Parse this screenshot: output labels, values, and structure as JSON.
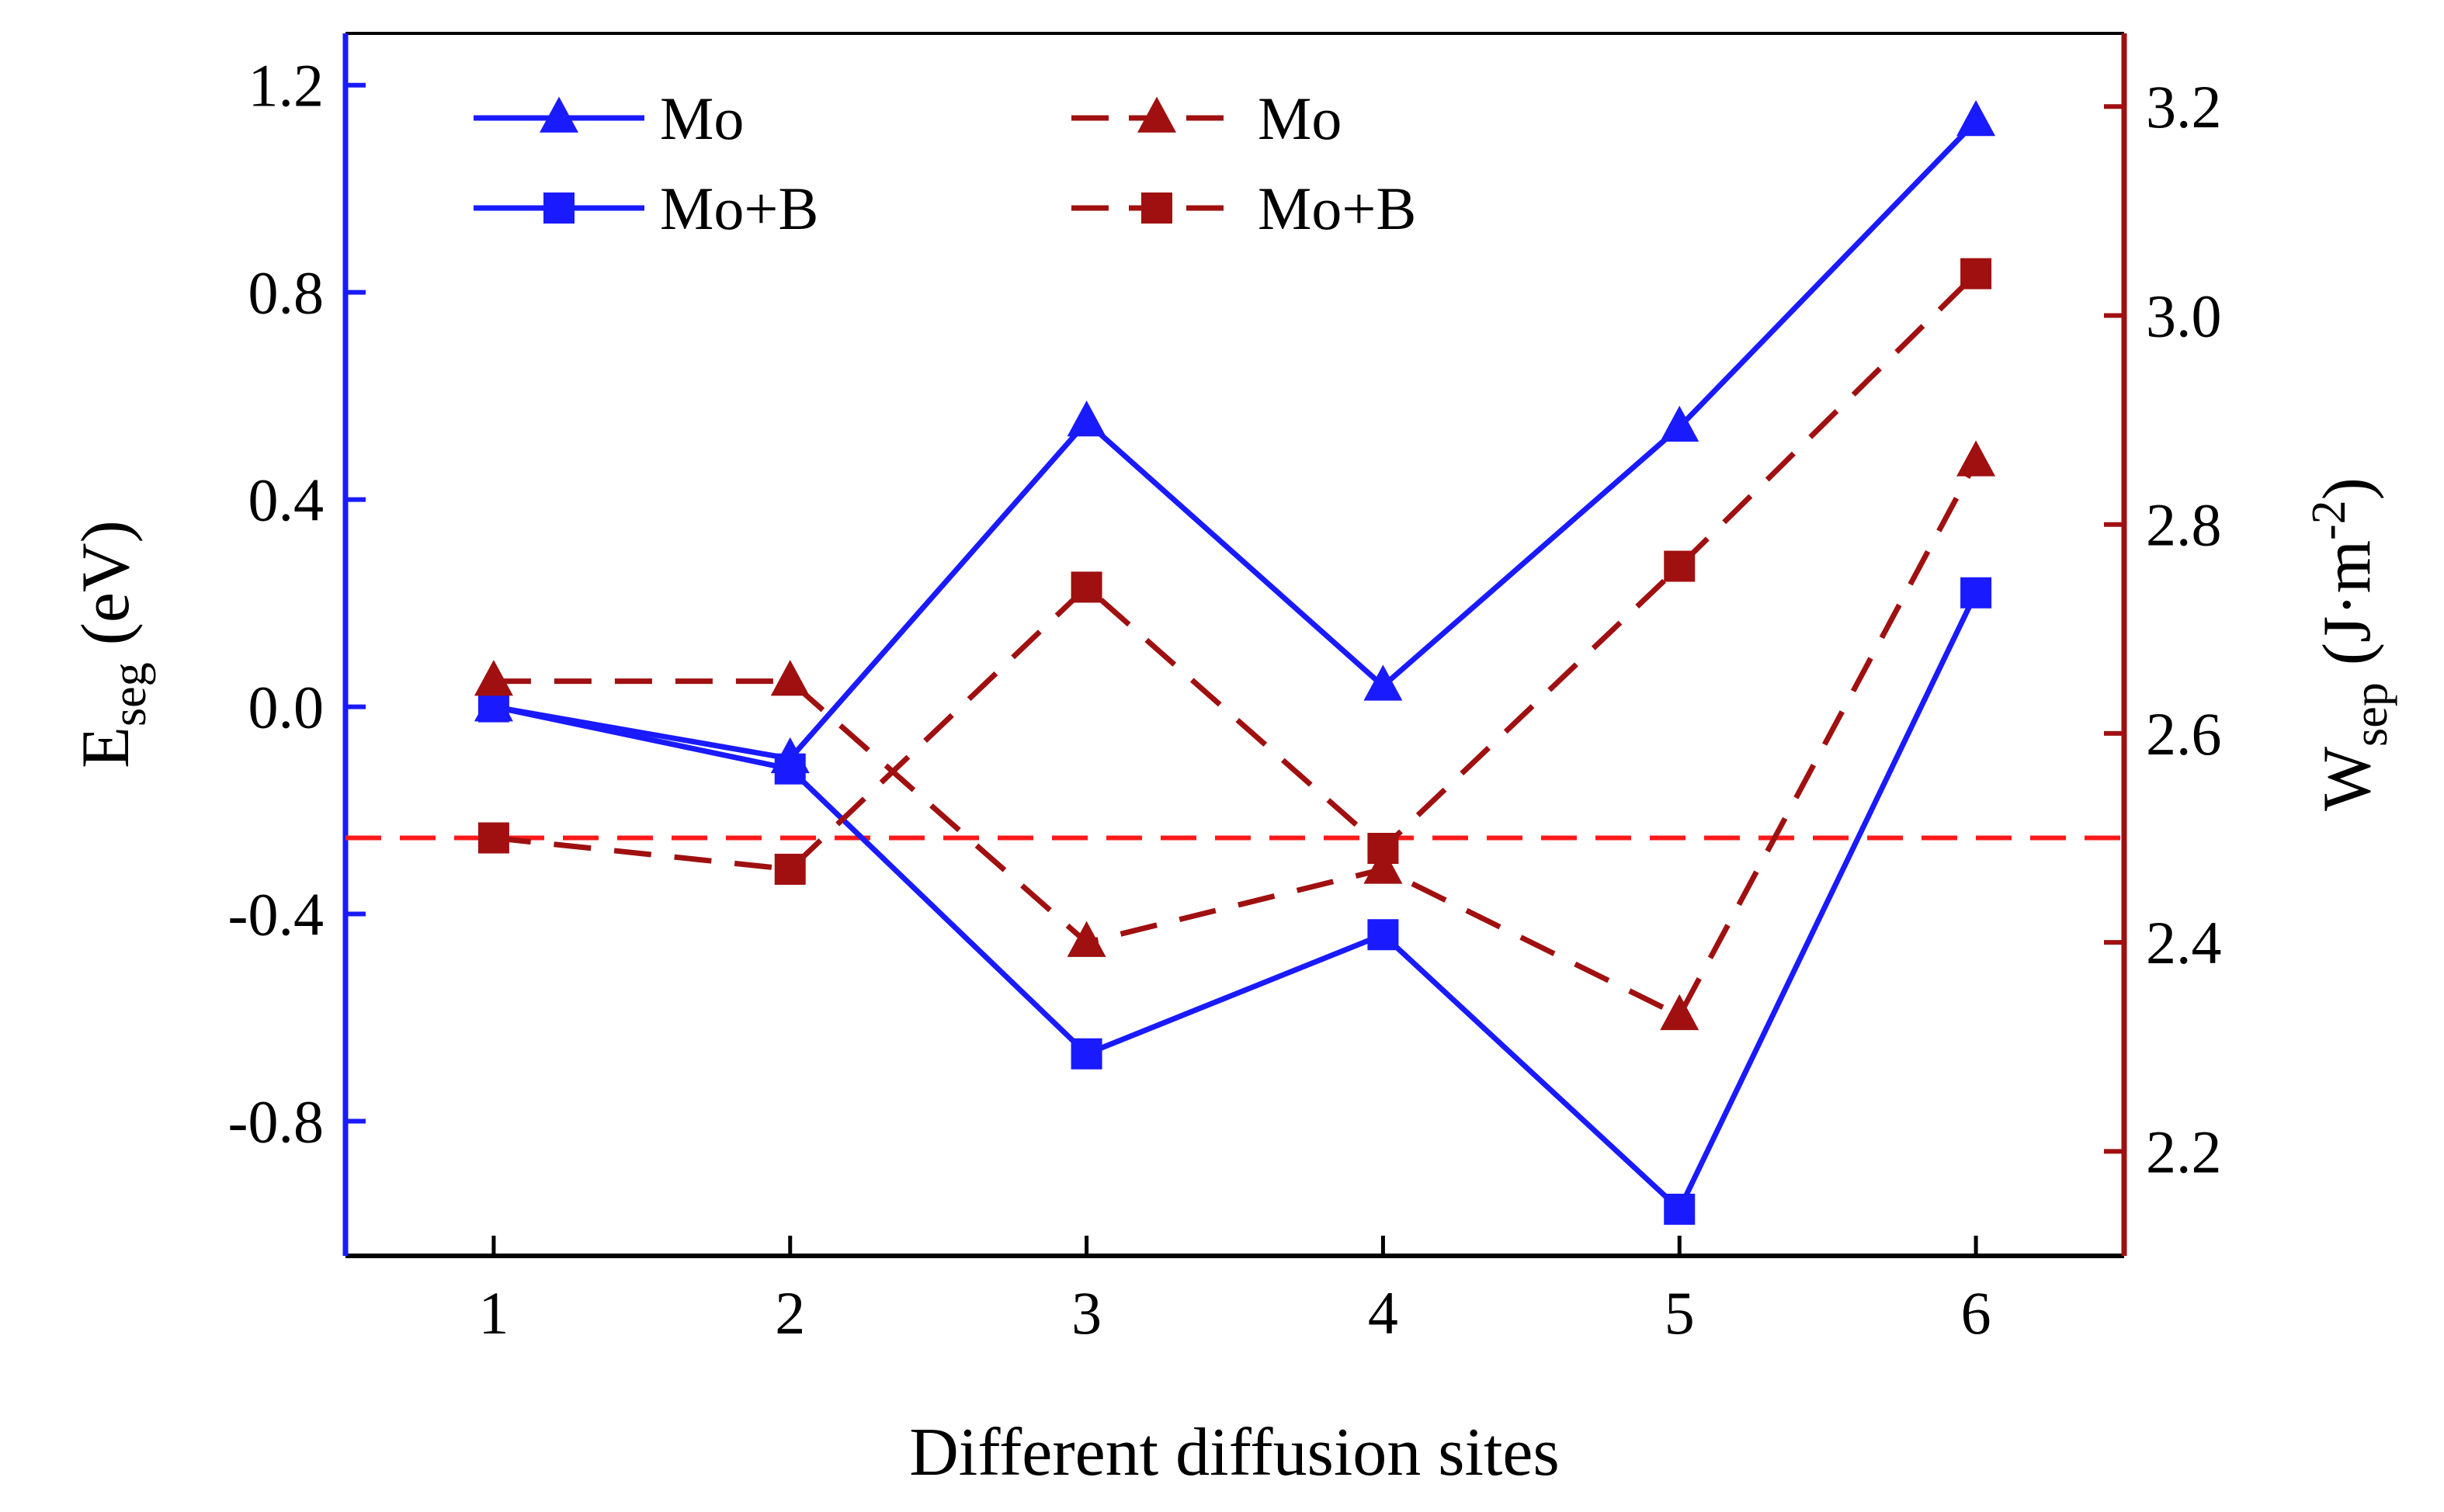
{
  "chart_data": {
    "type": "line",
    "xlabel": "Different diffusion sites",
    "x": [
      1,
      2,
      3,
      4,
      5,
      6
    ],
    "x_ticks": [
      "1",
      "2",
      "3",
      "4",
      "5",
      "6"
    ],
    "xlim": [
      0.5,
      6.5
    ],
    "left_axis": {
      "label_main": "E",
      "label_sub": "seg",
      "label_unit": " (eV)",
      "ylim": [
        -1.06,
        1.3
      ],
      "ticks": [
        1.2,
        0.8,
        0.4,
        0.0,
        -0.4,
        -0.8
      ],
      "tick_labels": [
        "1.2",
        "0.8",
        "0.4",
        "0.0",
        "-0.4",
        "-0.8"
      ],
      "color": "#1a1aff"
    },
    "right_axis": {
      "label_main": "W",
      "label_sub": "sep",
      "label_unit_open": " (J·m",
      "label_sup": "-2",
      "label_unit_close": ")",
      "ylim": [
        2.1,
        3.27
      ],
      "ticks": [
        3.2,
        3.0,
        2.8,
        2.6,
        2.4,
        2.2
      ],
      "tick_labels": [
        "3.2",
        "3.0",
        "2.8",
        "2.6",
        "2.4",
        "2.2"
      ],
      "color": "#a01010"
    },
    "reference_line": {
      "axis": "right",
      "value": 2.5,
      "color": "#ff1a1a",
      "style": "dashed"
    },
    "series": [
      {
        "name": "Mo",
        "axis": "left",
        "marker": "triangle",
        "line": "solid",
        "color": "#1a1aff",
        "values": [
          0.0,
          -0.1,
          0.55,
          0.04,
          0.54,
          1.13
        ]
      },
      {
        "name": "Mo+B",
        "axis": "left",
        "marker": "square",
        "line": "solid",
        "color": "#1a1aff",
        "values": [
          0.0,
          -0.12,
          -0.67,
          -0.44,
          -0.97,
          0.22
        ]
      },
      {
        "name": "Mo",
        "axis": "right",
        "marker": "triangle",
        "line": "dashed",
        "color": "#a01010",
        "values": [
          2.65,
          2.65,
          2.4,
          2.47,
          2.33,
          2.86
        ]
      },
      {
        "name": "Mo+B",
        "axis": "right",
        "marker": "square",
        "line": "dashed",
        "color": "#a01010",
        "values": [
          2.5,
          2.47,
          2.74,
          2.49,
          2.76,
          3.04
        ]
      }
    ],
    "legend": {
      "placement": "top-left",
      "columns": 2
    }
  }
}
